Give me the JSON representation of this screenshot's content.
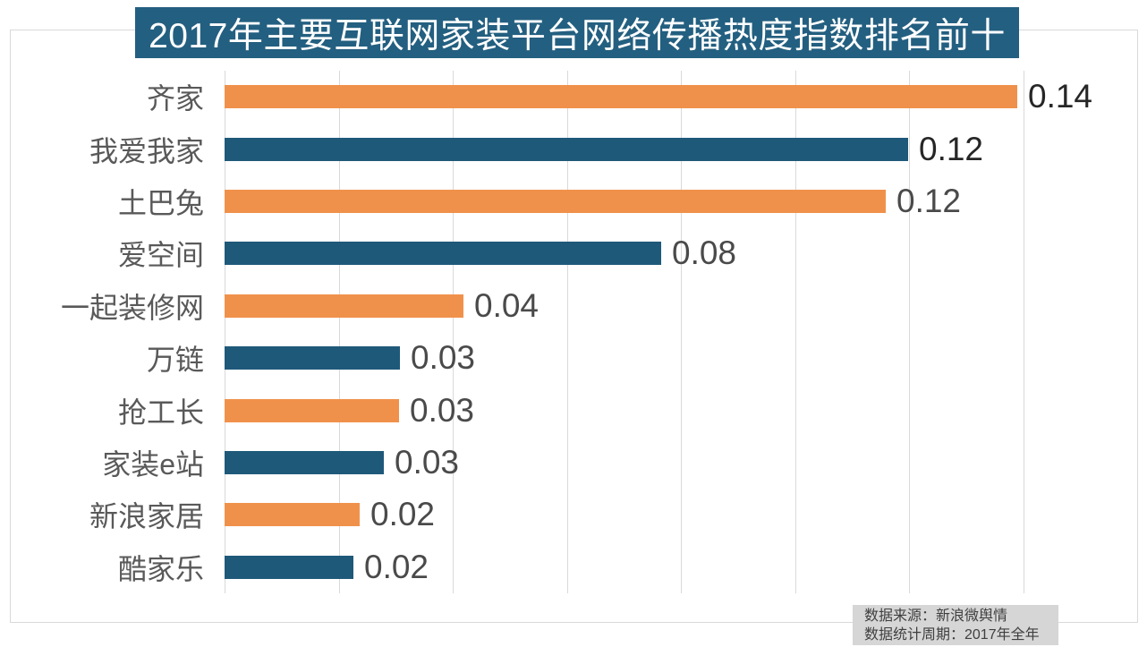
{
  "title_bar": {
    "text": "2017年主要互联网家装平台网络传播热度指数排名前十"
  },
  "chart_data": {
    "type": "bar",
    "orientation": "horizontal",
    "title": "2017年主要互联网家装平台网络传播热度指数排名前十",
    "categories": [
      "齐家",
      "我爱我家",
      "土巴兔",
      "爱空间",
      "一起装修网",
      "万链",
      "抢工长",
      "家装e站",
      "新浪家居",
      "酷家乐"
    ],
    "values": [
      0.14,
      0.12,
      0.12,
      0.08,
      0.04,
      0.03,
      0.03,
      0.03,
      0.02,
      0.02
    ],
    "value_labels": [
      "0.14",
      "0.12",
      "0.12",
      "0.08",
      "0.04",
      "0.03",
      "0.03",
      "0.03",
      "0.02",
      "0.02"
    ],
    "precise_values": [
      0.139,
      0.1198,
      0.1159,
      0.0766,
      0.0419,
      0.0308,
      0.0306,
      0.0279,
      0.0237,
      0.0226
    ],
    "xlabel": "",
    "ylabel": "",
    "xlim": [
      0,
      0.16
    ],
    "grid_interval": 0.02,
    "grid": "vertical-on",
    "legend": "none",
    "bar_color_pattern": [
      "orange",
      "blue"
    ]
  },
  "source": {
    "line1": "数据来源：新浪微舆情",
    "line2": "数据统计周期：2017年全年"
  },
  "colors": {
    "orange": "#f0914b",
    "blue": "#1f597a",
    "title_bg": "#235f80",
    "grid": "#d9d9d9",
    "category_label": "#595959",
    "value_label_dark": "#262626",
    "value_label_gray": "#4a4a4a",
    "source_bg": "#d6d6d6",
    "source_text": "#3f3f3f"
  }
}
